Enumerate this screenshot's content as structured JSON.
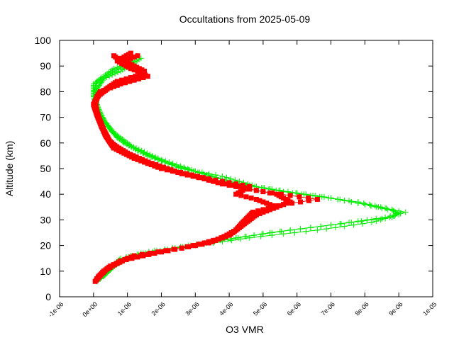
{
  "chart_data": {
    "type": "scatter",
    "title": "Occultations from 2025-05-09",
    "xlabel": "O3 VMR",
    "ylabel": "Altitude (km)",
    "xlim": [
      -1e-06,
      1e-05
    ],
    "ylim": [
      0,
      100
    ],
    "xticks": [
      -1e-06,
      0,
      1e-06,
      2e-06,
      3e-06,
      4e-06,
      5e-06,
      6e-06,
      7e-06,
      8e-06,
      9e-06,
      1e-05
    ],
    "xtick_labels": [
      "-1e-06",
      "0e+00",
      "1e-06",
      "2e-06",
      "3e-06",
      "4e-06",
      "5e-06",
      "6e-06",
      "7e-06",
      "8e-06",
      "9e-06",
      "1e-05"
    ],
    "yticks": [
      0,
      10,
      20,
      30,
      40,
      50,
      60,
      70,
      80,
      90,
      100
    ],
    "ytick_labels": [
      "0",
      "10",
      "20",
      "30",
      "40",
      "50",
      "60",
      "70",
      "80",
      "90",
      "100"
    ],
    "grid": false,
    "legend": "none",
    "series": [
      {
        "color": "#00ee00",
        "marker": "plus",
        "profiles": [
          [
            [
              1e-07,
              6
            ],
            [
              4e-07,
              10
            ],
            [
              8e-07,
              15
            ],
            [
              1.8e-06,
              18
            ],
            [
              3e-06,
              20
            ],
            [
              4.6e-06,
              23
            ],
            [
              6.6e-06,
              26
            ],
            [
              8.2e-06,
              29
            ],
            [
              9e-06,
              32
            ],
            [
              8.8e-06,
              34
            ],
            [
              7.8e-06,
              37
            ],
            [
              6.2e-06,
              40
            ],
            [
              4.8e-06,
              43
            ],
            [
              3.8e-06,
              47
            ],
            [
              2.6e-06,
              50
            ],
            [
              1.6e-06,
              55
            ],
            [
              9e-07,
              60
            ],
            [
              5e-07,
              65
            ],
            [
              2.5e-07,
              70
            ],
            [
              1e-07,
              75
            ],
            [
              5e-08,
              80
            ],
            [
              3e-07,
              85
            ],
            [
              8e-07,
              88
            ],
            [
              1.4e-06,
              93
            ]
          ],
          [
            [
              2e-07,
              7
            ],
            [
              6e-07,
              12
            ],
            [
              1.1e-06,
              16
            ],
            [
              2.4e-06,
              19
            ],
            [
              3.8e-06,
              22
            ],
            [
              5.2e-06,
              25
            ],
            [
              7e-06,
              28
            ],
            [
              8.6e-06,
              31
            ],
            [
              9.2e-06,
              33
            ],
            [
              8.4e-06,
              35
            ],
            [
              7.2e-06,
              38
            ],
            [
              5.6e-06,
              41
            ],
            [
              4.3e-06,
              44
            ],
            [
              3.2e-06,
              48
            ],
            [
              2.2e-06,
              52
            ],
            [
              1.3e-06,
              57
            ],
            [
              7e-07,
              62
            ],
            [
              3.5e-07,
              68
            ],
            [
              1.5e-07,
              73
            ],
            [
              0.0,
              78
            ],
            [
              0.0,
              83
            ],
            [
              5e-07,
              87
            ],
            [
              1e-06,
              91
            ]
          ],
          [
            [
              3e-07,
              8
            ],
            [
              7e-07,
              13
            ],
            [
              1.4e-06,
              17
            ],
            [
              2.8e-06,
              20
            ],
            [
              4.2e-06,
              23
            ],
            [
              5.8e-06,
              26
            ],
            [
              7.6e-06,
              29
            ],
            [
              8.8e-06,
              31
            ],
            [
              9e-06,
              33
            ],
            [
              8e-06,
              36
            ],
            [
              6.8e-06,
              39
            ],
            [
              5.2e-06,
              42
            ],
            [
              4e-06,
              45
            ],
            [
              3e-06,
              49
            ],
            [
              1.9e-06,
              54
            ],
            [
              1.1e-06,
              59
            ],
            [
              6e-07,
              64
            ],
            [
              3e-07,
              69
            ],
            [
              1e-07,
              74
            ],
            [
              0.0,
              79
            ],
            [
              1e-07,
              84
            ],
            [
              6e-07,
              89
            ],
            [
              1.2e-06,
              92
            ]
          ]
        ]
      },
      {
        "color": "#ff0000",
        "marker": "square",
        "profiles": [
          [
            [
              5e-08,
              6
            ],
            [
              3e-07,
              10
            ],
            [
              8e-07,
              14
            ],
            [
              1.8e-06,
              17
            ],
            [
              3e-06,
              20
            ],
            [
              3.8e-06,
              23
            ],
            [
              4.2e-06,
              26
            ],
            [
              4.4e-06,
              29
            ],
            [
              4.7e-06,
              33
            ],
            [
              5.6e-06,
              36
            ],
            [
              6.6e-06,
              38
            ],
            [
              5e-06,
              41
            ],
            [
              3.8e-06,
              44
            ],
            [
              3e-06,
              47
            ],
            [
              2e-06,
              50
            ],
            [
              1.2e-06,
              54
            ],
            [
              6e-07,
              58
            ],
            [
              3.5e-07,
              63
            ],
            [
              2e-07,
              68
            ],
            [
              1e-07,
              72
            ],
            [
              5e-08,
              76
            ],
            [
              2e-07,
              80
            ],
            [
              8e-07,
              83
            ],
            [
              1.6e-06,
              86
            ],
            [
              1e-06,
              90
            ],
            [
              6e-07,
              94
            ]
          ],
          [
            [
              1e-07,
              7
            ],
            [
              4e-07,
              11
            ],
            [
              1e-06,
              15
            ],
            [
              2.2e-06,
              18
            ],
            [
              3.4e-06,
              21
            ],
            [
              4e-06,
              24
            ],
            [
              4.3e-06,
              27
            ],
            [
              4.6e-06,
              31
            ],
            [
              5.2e-06,
              34
            ],
            [
              5.8e-06,
              37
            ],
            [
              5.4e-06,
              40
            ],
            [
              4.6e-06,
              42
            ],
            [
              3.6e-06,
              45
            ],
            [
              2.6e-06,
              48
            ],
            [
              1.7e-06,
              52
            ],
            [
              1e-06,
              56
            ],
            [
              5e-07,
              60
            ],
            [
              3e-07,
              65
            ],
            [
              1.5e-07,
              70
            ],
            [
              5e-08,
              74
            ],
            [
              1e-07,
              78
            ],
            [
              5e-07,
              82
            ],
            [
              1.3e-06,
              85
            ],
            [
              1.5e-06,
              88
            ],
            [
              9e-07,
              92
            ],
            [
              1.3e-06,
              94
            ]
          ],
          [
            [
              1.5e-07,
              8
            ],
            [
              5e-07,
              12
            ],
            [
              1.2e-06,
              16
            ],
            [
              2.6e-06,
              19
            ],
            [
              3.6e-06,
              22
            ],
            [
              4.1e-06,
              25
            ],
            [
              4.4e-06,
              28
            ],
            [
              4.8e-06,
              32
            ],
            [
              5.4e-06,
              35
            ],
            [
              4.8e-06,
              38
            ],
            [
              4.2e-06,
              40
            ],
            [
              4.6e-06,
              43
            ],
            [
              3.4e-06,
              46
            ],
            [
              2.4e-06,
              49
            ],
            [
              1.5e-06,
              53
            ],
            [
              8e-07,
              57
            ],
            [
              4.5e-07,
              61
            ],
            [
              2.5e-07,
              66
            ],
            [
              1e-07,
              71
            ],
            [
              0.0,
              75
            ],
            [
              1.5e-07,
              79
            ],
            [
              7e-07,
              84
            ],
            [
              1.5e-06,
              87
            ],
            [
              1.1e-06,
              89
            ],
            [
              7e-07,
              92
            ],
            [
              1.1e-06,
              95
            ]
          ]
        ]
      }
    ]
  }
}
